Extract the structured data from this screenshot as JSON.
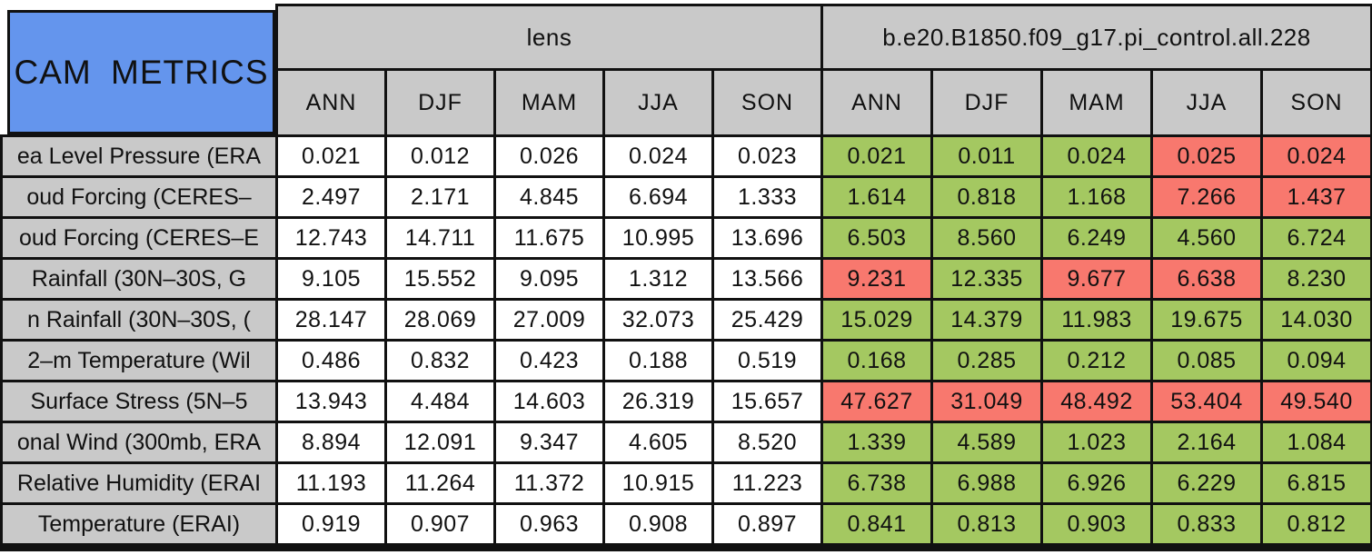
{
  "colors": {
    "title_blue": "#6495ed",
    "header_gray": "#c9c9c9",
    "better_green": "#a4c861",
    "worse_red": "#f8786e",
    "lens_cell_white": "#ffffff",
    "border_black": "#111111",
    "text": "#111111"
  },
  "chart_data": {
    "type": "table",
    "title": "CAM METRICS",
    "column_groups": [
      "lens",
      "b.e20.B1850.f09_g17.pi_control.all.228"
    ],
    "seasons": [
      "ANN",
      "DJF",
      "MAM",
      "JJA",
      "SON"
    ],
    "rows": [
      {
        "label": "ea Level Pressure (ERA",
        "lens": [
          "0.021",
          "0.012",
          "0.026",
          "0.024",
          "0.023"
        ],
        "control": [
          "0.021",
          "0.011",
          "0.024",
          "0.025",
          "0.024"
        ],
        "control_flags": [
          "green",
          "green",
          "green",
          "red",
          "red"
        ]
      },
      {
        "label": "oud Forcing (CERES–",
        "lens": [
          "2.497",
          "2.171",
          "4.845",
          "6.694",
          "1.333"
        ],
        "control": [
          "1.614",
          "0.818",
          "1.168",
          "7.266",
          "1.437"
        ],
        "control_flags": [
          "green",
          "green",
          "green",
          "red",
          "red"
        ]
      },
      {
        "label": "oud Forcing (CERES–E",
        "lens": [
          "12.743",
          "14.711",
          "11.675",
          "10.995",
          "13.696"
        ],
        "control": [
          "6.503",
          "8.560",
          "6.249",
          "4.560",
          "6.724"
        ],
        "control_flags": [
          "green",
          "green",
          "green",
          "green",
          "green"
        ]
      },
      {
        "label": "Rainfall (30N–30S, G",
        "lens": [
          "9.105",
          "15.552",
          "9.095",
          "1.312",
          "13.566"
        ],
        "control": [
          "9.231",
          "12.335",
          "9.677",
          "6.638",
          "8.230"
        ],
        "control_flags": [
          "red",
          "green",
          "red",
          "red",
          "green"
        ]
      },
      {
        "label": "n Rainfall (30N–30S, (",
        "lens": [
          "28.147",
          "28.069",
          "27.009",
          "32.073",
          "25.429"
        ],
        "control": [
          "15.029",
          "14.379",
          "11.983",
          "19.675",
          "14.030"
        ],
        "control_flags": [
          "green",
          "green",
          "green",
          "green",
          "green"
        ]
      },
      {
        "label": "2–m Temperature (Wil",
        "lens": [
          "0.486",
          "0.832",
          "0.423",
          "0.188",
          "0.519"
        ],
        "control": [
          "0.168",
          "0.285",
          "0.212",
          "0.085",
          "0.094"
        ],
        "control_flags": [
          "green",
          "green",
          "green",
          "green",
          "green"
        ]
      },
      {
        "label": "Surface Stress (5N–5",
        "lens": [
          "13.943",
          "4.484",
          "14.603",
          "26.319",
          "15.657"
        ],
        "control": [
          "47.627",
          "31.049",
          "48.492",
          "53.404",
          "49.540"
        ],
        "control_flags": [
          "red",
          "red",
          "red",
          "red",
          "red"
        ]
      },
      {
        "label": "onal Wind (300mb, ERA",
        "lens": [
          "8.894",
          "12.091",
          "9.347",
          "4.605",
          "8.520"
        ],
        "control": [
          "1.339",
          "4.589",
          "1.023",
          "2.164",
          "1.084"
        ],
        "control_flags": [
          "green",
          "green",
          "green",
          "green",
          "green"
        ]
      },
      {
        "label": "Relative Humidity (ERAI",
        "lens": [
          "11.193",
          "11.264",
          "11.372",
          "10.915",
          "11.223"
        ],
        "control": [
          "6.738",
          "6.988",
          "6.926",
          "6.229",
          "6.815"
        ],
        "control_flags": [
          "green",
          "green",
          "green",
          "green",
          "green"
        ]
      },
      {
        "label": "Temperature (ERAI)",
        "lens": [
          "0.919",
          "0.907",
          "0.963",
          "0.908",
          "0.897"
        ],
        "control": [
          "0.841",
          "0.813",
          "0.903",
          "0.833",
          "0.812"
        ],
        "control_flags": [
          "green",
          "green",
          "green",
          "green",
          "green"
        ]
      }
    ]
  }
}
